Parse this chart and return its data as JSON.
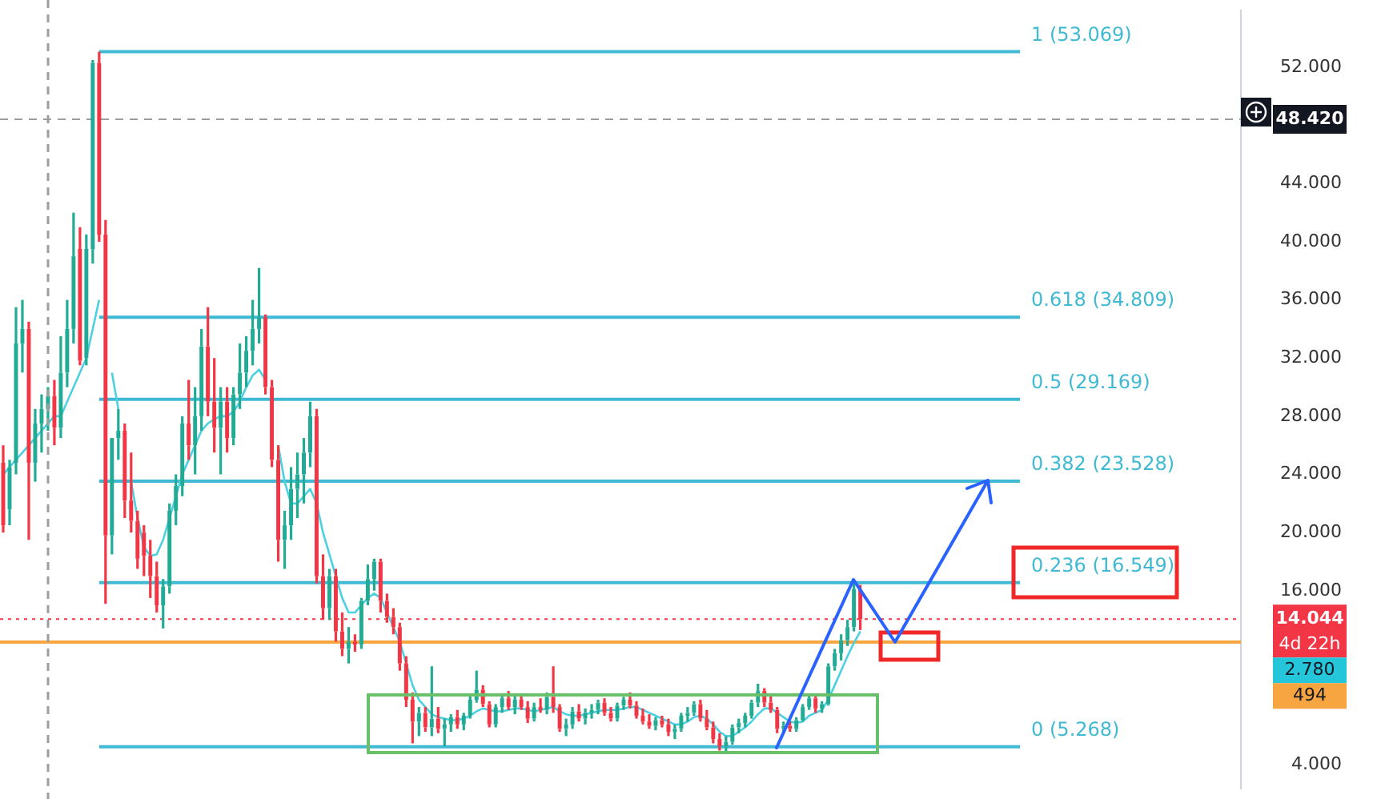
{
  "chart_data": {
    "type": "candlestick",
    "categories": [
      null,
      null,
      null,
      null,
      null,
      null,
      null,
      null,
      null,
      null,
      null,
      null,
      null,
      null,
      null,
      null,
      null,
      null,
      null,
      null,
      null,
      null,
      null,
      null,
      null,
      null,
      null,
      null,
      null,
      null,
      null,
      null,
      null,
      null,
      null,
      null,
      null,
      null,
      null,
      null,
      null,
      null,
      null,
      null,
      null,
      null,
      null,
      null,
      null,
      null,
      null,
      null,
      null,
      null,
      null,
      null,
      null,
      null,
      null,
      null,
      null,
      null,
      null,
      null,
      null,
      null,
      null,
      null,
      null,
      null,
      null,
      null,
      null,
      null,
      null,
      null,
      null,
      null,
      null,
      null,
      null,
      null,
      null,
      null,
      null,
      null,
      null,
      null,
      null,
      null,
      null,
      null,
      null,
      null,
      null,
      null,
      null,
      null,
      null,
      null,
      null,
      null,
      null,
      null,
      null,
      null,
      null,
      null,
      null,
      null,
      null,
      null,
      null,
      null,
      null,
      null,
      null,
      null,
      null,
      null,
      null,
      null,
      null,
      null,
      null,
      null,
      null,
      null,
      null,
      null,
      null,
      null,
      null,
      null,
      null,
      null,
      null,
      null,
      null,
      null,
      null,
      null,
      null,
      null,
      null,
      null,
      null,
      null,
      null,
      null,
      null,
      null,
      null,
      null,
      null,
      null,
      null,
      null,
      null,
      null,
      null,
      null,
      null,
      null,
      null,
      null,
      null,
      null,
      null,
      null,
      null,
      null,
      null,
      null,
      null,
      null,
      null,
      null,
      null,
      null,
      null,
      null,
      null,
      null,
      null,
      null,
      null,
      null,
      null,
      null,
      null,
      null,
      null,
      null
    ],
    "ohlc": [
      [
        24.8,
        26,
        20,
        20.5
      ],
      [
        21.6,
        25,
        20.5,
        24.5
      ],
      [
        24.8,
        35.5,
        24,
        33.0
      ],
      [
        33.0,
        36,
        31,
        34.0
      ],
      [
        34.0,
        34.5,
        19.5,
        24.8
      ],
      [
        24.8,
        28.5,
        23.5,
        27.5
      ],
      [
        27.5,
        29.5,
        25.5,
        28.5
      ],
      [
        28.5,
        30,
        27,
        29.4
      ],
      [
        29.4,
        30.5,
        26,
        27.2
      ],
      [
        27.2,
        33.5,
        26.5,
        31.0
      ],
      [
        31.0,
        36,
        30,
        34.0
      ],
      [
        34.0,
        42,
        33,
        39.0
      ],
      [
        39.5,
        41,
        31.5,
        31.8
      ],
      [
        32.0,
        40.5,
        31.5,
        39.5
      ],
      [
        39.5,
        52.5,
        38.5,
        52.3
      ],
      [
        52.3,
        53.069,
        40,
        40.5
      ],
      [
        40.5,
        41.5,
        15.1,
        19.8
      ],
      [
        19.8,
        26.5,
        18.5,
        26.5
      ],
      [
        26.5,
        28.5,
        25,
        27.0
      ],
      [
        27.0,
        27.5,
        21,
        22.2
      ],
      [
        22.2,
        25.5,
        20,
        20.8
      ],
      [
        20.8,
        21.5,
        17.5,
        18.2
      ],
      [
        20.0,
        20.5,
        17,
        18.4
      ],
      [
        18.4,
        19.5,
        15.5,
        17.0
      ],
      [
        17.0,
        18,
        14.5,
        15.0
      ],
      [
        15.0,
        16.8,
        13.4,
        16.3
      ],
      [
        16.3,
        22,
        15.8,
        21.5
      ],
      [
        21.5,
        24,
        20.5,
        23.2
      ],
      [
        23.2,
        28,
        22.5,
        27.5
      ],
      [
        27.5,
        30.5,
        25,
        26.0
      ],
      [
        26.0,
        30,
        24,
        28.0
      ],
      [
        28.0,
        34,
        27,
        32.8
      ],
      [
        32.8,
        35.5,
        28,
        29.0
      ],
      [
        29.0,
        32,
        25.5,
        27.2
      ],
      [
        27.2,
        30,
        24,
        29.0
      ],
      [
        29.0,
        30,
        25.5,
        26.5
      ],
      [
        26.5,
        30,
        26,
        29.5
      ],
      [
        29.5,
        33,
        28.5,
        31.0
      ],
      [
        31.0,
        33.5,
        30,
        32.5
      ],
      [
        32.5,
        36,
        31.5,
        34.0
      ],
      [
        34.0,
        38.2,
        33,
        34.8
      ],
      [
        34.8,
        35,
        29.5,
        30.0
      ],
      [
        30.0,
        30.5,
        24.5,
        25.0
      ],
      [
        25.0,
        26,
        18,
        19.5
      ],
      [
        19.5,
        21.5,
        17.5,
        20.5
      ],
      [
        20.5,
        24.5,
        19.5,
        23.0
      ],
      [
        23.0,
        25.5,
        21,
        24.0
      ],
      [
        24.0,
        26.5,
        22,
        25.5
      ],
      [
        25.5,
        29,
        24.5,
        28.0
      ],
      [
        28.0,
        28.5,
        16.5,
        17.0
      ],
      [
        17.0,
        18.5,
        14,
        14.8
      ],
      [
        14.8,
        17.5,
        14,
        17.0
      ],
      [
        17.0,
        17.5,
        12.5,
        13.2
      ],
      [
        13.2,
        14.5,
        11.5,
        12.0
      ],
      [
        12.0,
        13.5,
        11,
        12.5
      ],
      [
        12.5,
        13,
        11.8,
        12.3
      ],
      [
        12.3,
        15.5,
        12,
        15.3
      ],
      [
        15.3,
        17.8,
        15,
        16.8
      ],
      [
        16.8,
        18.2,
        16,
        18.0
      ],
      [
        18.0,
        18.2,
        14.5,
        15.3
      ],
      [
        15.3,
        15.8,
        13.8,
        14.2
      ],
      [
        14.2,
        14.8,
        13,
        13.5
      ],
      [
        13.5,
        13.8,
        10.5,
        11.0
      ],
      [
        11.0,
        11.5,
        8,
        8.5
      ],
      [
        8.5,
        9,
        5.5,
        7.0
      ],
      [
        7.0,
        8,
        6,
        7.6
      ],
      [
        7.6,
        8,
        6.3,
        6.6
      ],
      [
        6.6,
        10.8,
        6,
        7.2
      ],
      [
        7.2,
        8,
        6.2,
        6.5
      ],
      [
        6.5,
        7.2,
        5.3,
        6.8
      ],
      [
        6.8,
        7.5,
        6.3,
        7.3
      ],
      [
        7.3,
        7.8,
        6.5,
        6.8
      ],
      [
        6.8,
        7.6,
        6.4,
        7.4
      ],
      [
        7.4,
        8.8,
        7.2,
        8.5
      ],
      [
        8.5,
        10.5,
        8.3,
        9.2
      ],
      [
        9.2,
        9.5,
        8,
        8.2
      ],
      [
        8.2,
        8.4,
        6.6,
        6.8
      ],
      [
        6.8,
        8.2,
        6.6,
        8.0
      ],
      [
        8.0,
        8.8,
        7.6,
        8.6
      ],
      [
        8.6,
        9.1,
        7.8,
        8.0
      ],
      [
        8.0,
        8.8,
        7.5,
        8.5
      ],
      [
        8.5,
        8.9,
        7.8,
        8.0
      ],
      [
        8.0,
        8.4,
        6.9,
        7.2
      ],
      [
        7.2,
        8.3,
        7.0,
        8.0
      ],
      [
        8.0,
        8.6,
        7.6,
        7.8
      ],
      [
        7.8,
        9.0,
        7.5,
        8.7
      ],
      [
        8.7,
        10.8,
        7.6,
        8.0
      ],
      [
        8.0,
        8.2,
        6.3,
        6.5
      ],
      [
        6.5,
        7.2,
        6.0,
        6.8
      ],
      [
        6.8,
        8.0,
        6.5,
        7.7
      ],
      [
        7.7,
        8.2,
        7.0,
        7.2
      ],
      [
        7.2,
        7.9,
        6.8,
        7.6
      ],
      [
        7.6,
        8.2,
        7.2,
        7.8
      ],
      [
        7.8,
        8.5,
        7.5,
        8.3
      ],
      [
        8.3,
        8.6,
        7.4,
        7.6
      ],
      [
        7.6,
        8.0,
        7.0,
        7.2
      ],
      [
        7.2,
        8.3,
        7.0,
        8.1
      ],
      [
        8.1,
        8.7,
        7.8,
        8.5
      ],
      [
        8.5,
        9.0,
        7.9,
        8.1
      ],
      [
        8.1,
        8.4,
        7.2,
        7.4
      ],
      [
        7.4,
        7.9,
        6.8,
        7.0
      ],
      [
        7.0,
        7.5,
        6.5,
        6.7
      ],
      [
        6.7,
        7.3,
        6.4,
        7.1
      ],
      [
        7.1,
        7.4,
        6.6,
        6.8
      ],
      [
        6.8,
        7.2,
        6.0,
        6.3
      ],
      [
        6.3,
        6.8,
        5.8,
        6.5
      ],
      [
        6.5,
        7.6,
        6.3,
        7.4
      ],
      [
        7.4,
        8.0,
        7.0,
        7.6
      ],
      [
        7.6,
        8.4,
        7.4,
        8.2
      ],
      [
        8.2,
        8.5,
        7.0,
        7.2
      ],
      [
        7.2,
        7.8,
        6.4,
        6.6
      ],
      [
        6.6,
        7.0,
        5.5,
        5.8
      ],
      [
        5.8,
        6.2,
        5.0,
        5.3
      ],
      [
        5.3,
        6.0,
        4.9,
        5.6
      ],
      [
        5.6,
        6.8,
        5.4,
        6.6
      ],
      [
        6.6,
        7.2,
        6.2,
        6.9
      ],
      [
        6.9,
        7.6,
        6.6,
        7.4
      ],
      [
        7.4,
        8.5,
        7.2,
        8.3
      ],
      [
        8.3,
        9.6,
        8.0,
        9.1
      ],
      [
        9.1,
        9.3,
        8.0,
        8.3
      ],
      [
        8.3,
        8.8,
        7.6,
        7.8
      ],
      [
        7.8,
        8.0,
        6.2,
        6.5
      ],
      [
        6.5,
        7.0,
        6.2,
        6.7
      ],
      [
        6.7,
        7.0,
        6.3,
        6.5
      ],
      [
        6.5,
        7.3,
        6.3,
        7.1
      ],
      [
        7.1,
        8.2,
        7.0,
        8.0
      ],
      [
        8.0,
        8.8,
        7.8,
        8.6
      ],
      [
        8.6,
        8.8,
        7.6,
        7.9
      ],
      [
        7.9,
        8.4,
        7.6,
        8.2
      ],
      [
        8.2,
        11.0,
        8.1,
        10.8
      ],
      [
        10.8,
        12.0,
        10.5,
        11.7
      ],
      [
        11.7,
        13.0,
        11.2,
        12.6
      ],
      [
        12.6,
        14.0,
        12.2,
        13.5
      ],
      [
        13.5,
        16.6,
        13.2,
        16.1
      ],
      [
        16.1,
        16.4,
        13.3,
        14.044
      ],
      null,
      null,
      null,
      null,
      null,
      null,
      null,
      null,
      null,
      null,
      null,
      null,
      null,
      null,
      null,
      null,
      null,
      null,
      null,
      null,
      null,
      null,
      null,
      null,
      null,
      null,
      null,
      null,
      null,
      null,
      null,
      null,
      null,
      null,
      null,
      null,
      null,
      null,
      null,
      null,
      null,
      null,
      null,
      null,
      null,
      null,
      null,
      null,
      null,
      null,
      null,
      null,
      null,
      null,
      null,
      null,
      null,
      null,
      null
    ],
    "series": [
      {
        "type": "line",
        "color": "#4dd0e1",
        "values": [
          24,
          24.5,
          25,
          25.5,
          26,
          26.5,
          27,
          27.5,
          28,
          28,
          29,
          30,
          31,
          32,
          34,
          36,
          null,
          31,
          28.5,
          null,
          23.5,
          21,
          19,
          18.4,
          18.5,
          19.5,
          21,
          22.5,
          24,
          25,
          26,
          27,
          27.5,
          27.8,
          28,
          28,
          28.3,
          29,
          30,
          30.8,
          31.2,
          30.5,
          null,
          26,
          23.5,
          22,
          22,
          22.5,
          23,
          22,
          20,
          18.5,
          17,
          15.5,
          14.5,
          14.5,
          15,
          15.5,
          15.8,
          15.5,
          14.5,
          13.5,
          12.5,
          11,
          9.5,
          8.5,
          8,
          7.5,
          7.3,
          7.2,
          7.1,
          7.1,
          7.2,
          7.4,
          7.7,
          7.9,
          7.8,
          7.7,
          7.7,
          7.8,
          7.9,
          7.9,
          7.8,
          7.7,
          7.8,
          7.9,
          8.0,
          7.7,
          7.5,
          7.4,
          7.4,
          7.5,
          7.6,
          7.7,
          7.8,
          7.8,
          7.8,
          7.9,
          8.0,
          8.0,
          7.8,
          7.6,
          7.4,
          7.2,
          7.0,
          6.8,
          6.8,
          7.0,
          7.3,
          7.4,
          7.2,
          6.8,
          6.3,
          6.0,
          6.0,
          6.3,
          6.6,
          7.0,
          7.5,
          7.9,
          7.9,
          7.6,
          7.3,
          7.0,
          6.9,
          7.0,
          7.4,
          7.6,
          7.8,
          8.5,
          9.5,
          10.5,
          11.5,
          12.4,
          13.2,
          null,
          null,
          null,
          null,
          null,
          null,
          null,
          null,
          null,
          null,
          null,
          null,
          null,
          null,
          null,
          null,
          null,
          null,
          null,
          null,
          null,
          null,
          null,
          null,
          null,
          null,
          null,
          null,
          null,
          null,
          null,
          null,
          null,
          null,
          null,
          null,
          null,
          null,
          null,
          null,
          null,
          null,
          null,
          null,
          null,
          null,
          null,
          null,
          null,
          null,
          null,
          null,
          null,
          null,
          null,
          null,
          null,
          null,
          null
        ]
      }
    ],
    "ylim": [
      2.4,
      55.9
    ],
    "yticks": [
      {
        "value": 4,
        "label": "4.000"
      },
      {
        "value": 16,
        "label": "16.000"
      },
      {
        "value": 20,
        "label": "20.000"
      },
      {
        "value": 24,
        "label": "24.000"
      },
      {
        "value": 28,
        "label": "28.000"
      },
      {
        "value": 32,
        "label": "32.000"
      },
      {
        "value": 36,
        "label": "36.000"
      },
      {
        "value": 40,
        "label": "40.000"
      },
      {
        "value": 44,
        "label": "44.000"
      },
      {
        "value": 52,
        "label": "52.000"
      }
    ],
    "tick_labels": "y",
    "ref_lines": [
      {
        "axis": "y",
        "value": 53.069,
        "label": "1 (53.069)",
        "color": "#3fb9d4"
      },
      {
        "axis": "y",
        "value": 34.809,
        "label": "0.618 (34.809)",
        "color": "#3fb9d4"
      },
      {
        "axis": "y",
        "value": 29.169,
        "label": "0.5 (29.169)",
        "color": "#3fb9d4"
      },
      {
        "axis": "y",
        "value": 23.528,
        "label": "0.382 (23.528)",
        "color": "#3fb9d4"
      },
      {
        "axis": "y",
        "value": 16.549,
        "label": "0.236 (16.549)",
        "color": "#3fb9d4"
      },
      {
        "axis": "y",
        "value": 5.268,
        "label": "0 (5.268)",
        "color": "#3fb9d4"
      },
      {
        "axis": "y",
        "value": 48.42,
        "label": "48.420",
        "color": "#9e9e9e",
        "line_style": "dashed"
      },
      {
        "axis": "y",
        "value": 14.044,
        "label": "14.044",
        "color": "#f23645",
        "line_style": "dotted"
      },
      {
        "axis": "y",
        "value": 12.46,
        "color": "#f7a541"
      }
    ],
    "annotations": [
      "4d 22h",
      "2.780",
      "494"
    ]
  }
}
